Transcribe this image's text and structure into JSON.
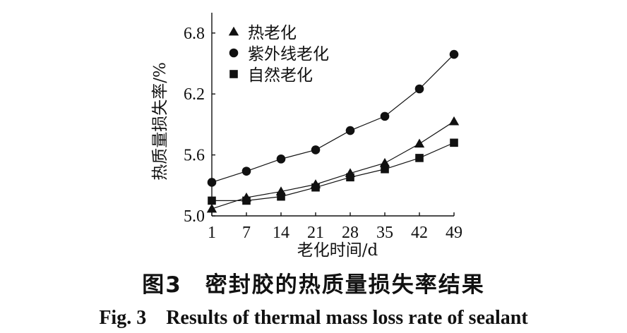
{
  "chart_data": {
    "type": "line",
    "title": "",
    "xlabel": "老化时间/d",
    "ylabel": "热质量损失率/%",
    "categories": [
      "1",
      "7",
      "14",
      "21",
      "28",
      "35",
      "42",
      "49"
    ],
    "x": [
      1,
      7,
      14,
      21,
      28,
      35,
      42,
      49
    ],
    "ylim": [
      5.0,
      7.0
    ],
    "yticks": [
      "5.0",
      "5.6",
      "6.2",
      "6.8"
    ],
    "ytick_values": [
      5.0,
      5.6,
      6.2,
      6.8
    ],
    "legend_position": "top-left",
    "grid": false,
    "series": [
      {
        "name": "热老化",
        "marker": "triangle",
        "values": [
          5.07,
          5.18,
          5.24,
          5.31,
          5.42,
          5.52,
          5.71,
          5.93
        ]
      },
      {
        "name": "紫外线老化",
        "marker": "circle",
        "values": [
          5.33,
          5.44,
          5.56,
          5.65,
          5.84,
          5.98,
          6.25,
          6.59
        ]
      },
      {
        "name": "自然老化",
        "marker": "square",
        "values": [
          5.15,
          5.15,
          5.19,
          5.28,
          5.38,
          5.46,
          5.57,
          5.72
        ]
      }
    ],
    "colors": {
      "line": "#111111",
      "marker": "#111111"
    }
  },
  "caption": {
    "cn": "图3　密封胶的热质量损失率结果",
    "en": "Fig. 3　Results of thermal mass loss rate of sealant"
  }
}
